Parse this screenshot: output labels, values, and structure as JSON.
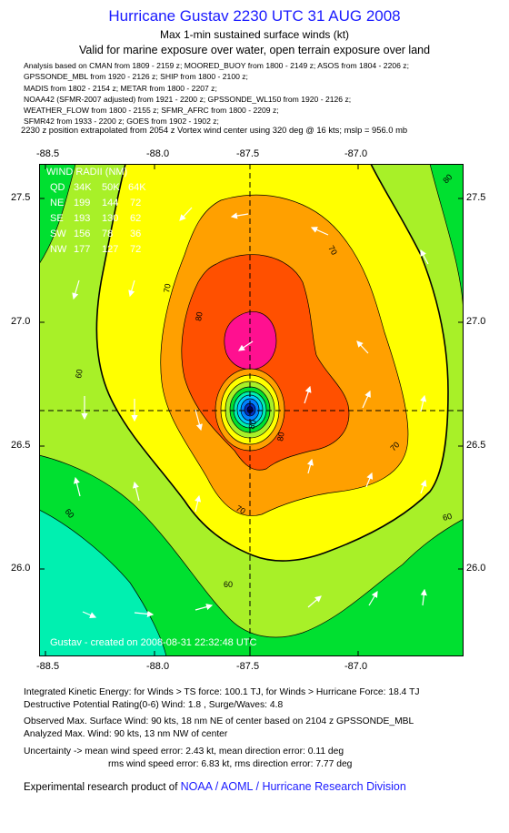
{
  "header": {
    "title": "Hurricane Gustav 2230 UTC 31 AUG 2008",
    "subtitle": "Max 1-min sustained surface winds (kt)",
    "validity": "Valid for marine exposure over water, open terrain exposure over land"
  },
  "sources": [
    "Analysis based on  CMAN from 1809 - 2159 z;  MOORED_BUOY from 1800 - 2149 z;  ASOS from 1804 - 2206 z;",
    "GPSSONDE_MBL from 1920 - 2126 z;  SHIP from 1800 - 2100 z;",
    "MADIS from 1802 - 2154 z;  METAR from 1800 - 2207 z;",
    "NOAA42 (SFMR-2007 adjusted) from 1921 - 2200 z;  GPSSONDE_WL150 from 1920 - 2126 z;",
    "WEATHER_FLOW from 1800 - 2155 z;  SFMR_AFRC from 1800 - 2209 z;",
    "SFMR42 from 1933 - 2200 z;  GOES from 1902 - 1902 z;"
  ],
  "vortex_note": "2230 z position extrapolated from 2054 z Vortex wind center using 320 deg @ 16 kts; mslp = 956.0 mb",
  "axes": {
    "x_ticks": [
      "-88.5",
      "-88.0",
      "-87.5",
      "-87.0"
    ],
    "y_ticks": [
      "27.5",
      "27.0",
      "26.5",
      "26.0"
    ]
  },
  "wind_radii": {
    "title": "WIND RADII (NM)",
    "header": [
      "QD",
      "34K",
      "50K",
      "64K"
    ],
    "rows": [
      [
        "NE",
        "199",
        "144",
        "72"
      ],
      [
        "SE",
        "193",
        "130",
        "62"
      ],
      [
        "SW",
        "156",
        "78",
        "36"
      ],
      [
        "NW",
        "177",
        "127",
        "72"
      ]
    ]
  },
  "contour_labels": [
    "80",
    "70",
    "80",
    "60",
    "70",
    "80",
    "70",
    "70",
    "60",
    "60",
    "60",
    "80"
  ],
  "watermark": "Gustav - created on 2008-08-31 22:32:48 UTC",
  "stats": {
    "ike": "Integrated Kinetic Energy:  for Winds > TS force: 100.1 TJ,  for Winds > Hurricane Force: 18.4 TJ",
    "dpr": "Destructive Potential Rating(0-6)   Wind: 1.8 , Surge/Waves: 4.8",
    "observed": "Observed Max. Surface Wind: 90 kts, 18 nm NE of center based on 2104 z GPSSONDE_MBL",
    "analyzed": "Analyzed Max. Wind: 90 kts, 13 nm NW of center",
    "uncertainty1": "Uncertainty -> mean wind speed error: 2.43 kt,   mean direction error: 0.11 deg",
    "uncertainty2": "rms wind speed error: 6.83 kt,   rms direction error: 7.77 deg"
  },
  "footer": {
    "prefix": "Experimental research product of",
    "link": "NOAA / AOML / Hurricane Research Division"
  }
}
